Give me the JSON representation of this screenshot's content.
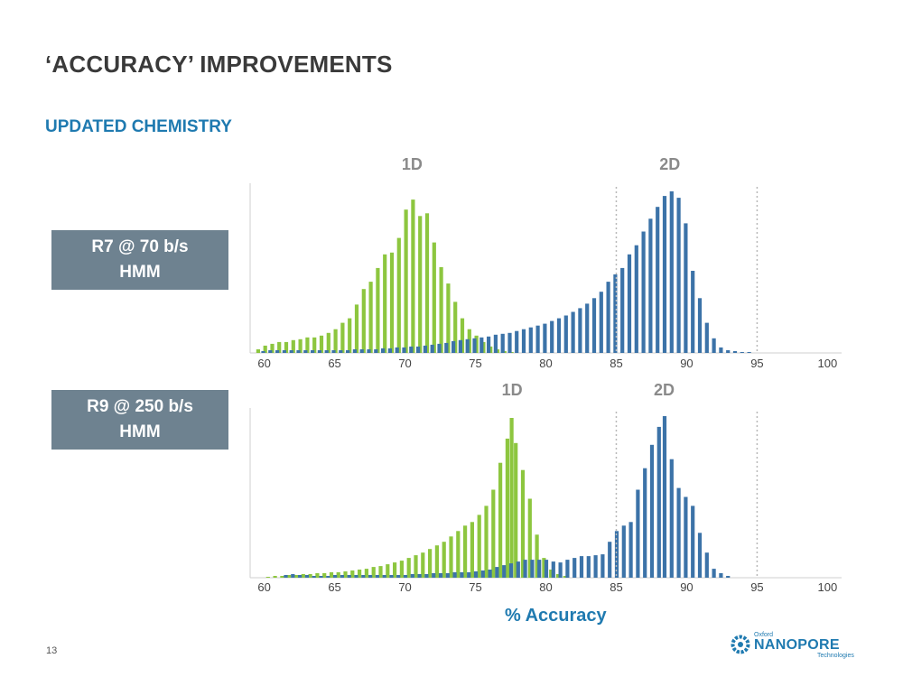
{
  "slide": {
    "title": "‘ACCURACY’ IMPROVEMENTS",
    "subtitle": "UPDATED CHEMISTRY",
    "page_number": "13",
    "x_axis_label": "% Accuracy"
  },
  "labels": {
    "r7": {
      "line1": "R7 @ 70 b/s",
      "line2": "HMM"
    },
    "r9": {
      "line1": "R9 @ 250 b/s",
      "line2": "HMM"
    }
  },
  "logo": {
    "small": "Oxford",
    "main": "NANOPORE",
    "tech": "Technologies"
  },
  "colors": {
    "green": "#8dc63f",
    "blue": "#3c73a8",
    "accent": "#1f7ab0",
    "label_bg": "#6e8290"
  },
  "chart_data": [
    {
      "type": "bar",
      "name": "R7 @ 70 b/s HMM",
      "xlim": [
        59,
        101
      ],
      "x_ticks": [
        "60",
        "65",
        "70",
        "75",
        "80",
        "85",
        "90",
        "95",
        "100"
      ],
      "reference_lines": [
        85,
        95
      ],
      "annotations": [
        {
          "text": "1D",
          "x": 70.5
        },
        {
          "text": "2D",
          "x": 88.8
        }
      ],
      "series": [
        {
          "name": "1D",
          "color": "#8dc63f",
          "points": [
            [
              59.6,
              4
            ],
            [
              60.1,
              8
            ],
            [
              60.6,
              10
            ],
            [
              61.1,
              12
            ],
            [
              61.6,
              12
            ],
            [
              62.1,
              14
            ],
            [
              62.6,
              15
            ],
            [
              63.1,
              17
            ],
            [
              63.6,
              17
            ],
            [
              64.1,
              19
            ],
            [
              64.6,
              22
            ],
            [
              65.1,
              26
            ],
            [
              65.6,
              33
            ],
            [
              66.1,
              38
            ],
            [
              66.6,
              53
            ],
            [
              67.1,
              70
            ],
            [
              67.6,
              78
            ],
            [
              68.1,
              93
            ],
            [
              68.6,
              108
            ],
            [
              69.1,
              110
            ],
            [
              69.6,
              126
            ],
            [
              70.1,
              157
            ],
            [
              70.6,
              168
            ],
            [
              71.1,
              150
            ],
            [
              71.6,
              153
            ],
            [
              72.1,
              121
            ],
            [
              72.6,
              94
            ],
            [
              73.1,
              76
            ],
            [
              73.6,
              56
            ],
            [
              74.1,
              38
            ],
            [
              74.6,
              26
            ],
            [
              75.1,
              19
            ],
            [
              75.6,
              12
            ],
            [
              76.1,
              7
            ],
            [
              76.6,
              4
            ],
            [
              77.1,
              2
            ],
            [
              77.6,
              1
            ]
          ]
        },
        {
          "name": "2D",
          "color": "#3c73a8",
          "points": [
            [
              59.9,
              2
            ],
            [
              60.4,
              3
            ],
            [
              60.9,
              3
            ],
            [
              61.4,
              3
            ],
            [
              61.9,
              3
            ],
            [
              62.4,
              3
            ],
            [
              62.9,
              3
            ],
            [
              63.4,
              3
            ],
            [
              63.9,
              3
            ],
            [
              64.4,
              3
            ],
            [
              64.9,
              3
            ],
            [
              65.4,
              3
            ],
            [
              65.9,
              3
            ],
            [
              66.4,
              4
            ],
            [
              66.9,
              4
            ],
            [
              67.4,
              4
            ],
            [
              67.9,
              4
            ],
            [
              68.4,
              5
            ],
            [
              68.9,
              5
            ],
            [
              69.4,
              6
            ],
            [
              69.9,
              6
            ],
            [
              70.4,
              7
            ],
            [
              70.9,
              7
            ],
            [
              71.4,
              8
            ],
            [
              71.9,
              9
            ],
            [
              72.4,
              10
            ],
            [
              72.9,
              11
            ],
            [
              73.4,
              13
            ],
            [
              73.9,
              14
            ],
            [
              74.4,
              15
            ],
            [
              74.9,
              16
            ],
            [
              75.4,
              17
            ],
            [
              75.9,
              18
            ],
            [
              76.4,
              20
            ],
            [
              76.9,
              21
            ],
            [
              77.4,
              22
            ],
            [
              77.9,
              24
            ],
            [
              78.4,
              26
            ],
            [
              78.9,
              28
            ],
            [
              79.4,
              30
            ],
            [
              79.9,
              32
            ],
            [
              80.4,
              35
            ],
            [
              80.9,
              38
            ],
            [
              81.4,
              41
            ],
            [
              81.9,
              45
            ],
            [
              82.4,
              49
            ],
            [
              82.9,
              54
            ],
            [
              83.4,
              60
            ],
            [
              83.9,
              67
            ],
            [
              84.4,
              78
            ],
            [
              84.9,
              86
            ],
            [
              85.4,
              93
            ],
            [
              85.9,
              108
            ],
            [
              86.4,
              118
            ],
            [
              86.9,
              133
            ],
            [
              87.4,
              147
            ],
            [
              87.9,
              160
            ],
            [
              88.4,
              172
            ],
            [
              88.9,
              177
            ],
            [
              89.4,
              170
            ],
            [
              89.9,
              142
            ],
            [
              90.4,
              90
            ],
            [
              90.9,
              60
            ],
            [
              91.4,
              33
            ],
            [
              91.9,
              16
            ],
            [
              92.4,
              6
            ],
            [
              92.9,
              3
            ],
            [
              93.4,
              2
            ],
            [
              93.9,
              1
            ],
            [
              94.4,
              1
            ]
          ]
        }
      ]
    },
    {
      "type": "bar",
      "name": "R9 @ 250 b/s HMM",
      "xlim": [
        59,
        101
      ],
      "x_ticks": [
        "60",
        "65",
        "70",
        "75",
        "80",
        "85",
        "90",
        "95",
        "100"
      ],
      "reference_lines": [
        85,
        95
      ],
      "annotations": [
        {
          "text": "1D",
          "x": 77.6
        },
        {
          "text": "2D",
          "x": 88.4
        }
      ],
      "series": [
        {
          "name": "1D",
          "color": "#8dc63f",
          "points": [
            [
              60.3,
              1
            ],
            [
              60.8,
              2
            ],
            [
              61.3,
              2
            ],
            [
              61.8,
              3
            ],
            [
              62.3,
              3
            ],
            [
              62.8,
              4
            ],
            [
              63.3,
              4
            ],
            [
              63.8,
              5
            ],
            [
              64.3,
              5
            ],
            [
              64.8,
              6
            ],
            [
              65.3,
              6
            ],
            [
              65.8,
              7
            ],
            [
              66.3,
              8
            ],
            [
              66.8,
              9
            ],
            [
              67.3,
              10
            ],
            [
              67.8,
              12
            ],
            [
              68.3,
              13
            ],
            [
              68.8,
              15
            ],
            [
              69.3,
              17
            ],
            [
              69.8,
              19
            ],
            [
              70.3,
              22
            ],
            [
              70.8,
              25
            ],
            [
              71.3,
              28
            ],
            [
              71.8,
              32
            ],
            [
              72.3,
              36
            ],
            [
              72.8,
              40
            ],
            [
              73.3,
              46
            ],
            [
              73.8,
              52
            ],
            [
              74.3,
              58
            ],
            [
              74.8,
              62
            ],
            [
              75.3,
              70
            ],
            [
              75.8,
              80
            ],
            [
              76.3,
              98
            ],
            [
              76.8,
              128
            ],
            [
              77.3,
              155
            ],
            [
              77.6,
              178
            ],
            [
              77.9,
              150
            ],
            [
              78.4,
              120
            ],
            [
              78.9,
              88
            ],
            [
              79.4,
              48
            ],
            [
              79.9,
              22
            ],
            [
              80.4,
              9
            ],
            [
              80.9,
              4
            ],
            [
              81.4,
              2
            ]
          ]
        },
        {
          "name": "2D",
          "color": "#3c73a8",
          "points": [
            [
              61.5,
              3
            ],
            [
              62.0,
              4
            ],
            [
              62.5,
              3
            ],
            [
              63.0,
              3
            ],
            [
              63.5,
              2
            ],
            [
              64.0,
              2
            ],
            [
              64.5,
              2
            ],
            [
              65.0,
              3
            ],
            [
              65.5,
              3
            ],
            [
              66.0,
              3
            ],
            [
              66.5,
              3
            ],
            [
              67.0,
              3
            ],
            [
              67.5,
              3
            ],
            [
              68.0,
              3
            ],
            [
              68.5,
              3
            ],
            [
              69.0,
              3
            ],
            [
              69.5,
              3
            ],
            [
              70.0,
              3
            ],
            [
              70.5,
              4
            ],
            [
              71.0,
              4
            ],
            [
              71.5,
              4
            ],
            [
              72.0,
              5
            ],
            [
              72.5,
              5
            ],
            [
              73.0,
              5
            ],
            [
              73.5,
              6
            ],
            [
              74.0,
              6
            ],
            [
              74.5,
              6
            ],
            [
              75.0,
              7
            ],
            [
              75.5,
              8
            ],
            [
              76.0,
              9
            ],
            [
              76.5,
              12
            ],
            [
              77.0,
              14
            ],
            [
              77.5,
              16
            ],
            [
              78.0,
              18
            ],
            [
              78.5,
              20
            ],
            [
              79.0,
              20
            ],
            [
              79.5,
              20
            ],
            [
              80.0,
              20
            ],
            [
              80.5,
              18
            ],
            [
              81.0,
              17
            ],
            [
              81.5,
              20
            ],
            [
              82.0,
              22
            ],
            [
              82.5,
              24
            ],
            [
              83.0,
              24
            ],
            [
              83.5,
              25
            ],
            [
              84.0,
              26
            ],
            [
              84.5,
              40
            ],
            [
              85.0,
              52
            ],
            [
              85.5,
              58
            ],
            [
              86.0,
              62
            ],
            [
              86.5,
              98
            ],
            [
              87.0,
              122
            ],
            [
              87.5,
              148
            ],
            [
              88.0,
              168
            ],
            [
              88.4,
              180
            ],
            [
              88.9,
              132
            ],
            [
              89.4,
              100
            ],
            [
              89.9,
              90
            ],
            [
              90.4,
              80
            ],
            [
              90.9,
              50
            ],
            [
              91.4,
              28
            ],
            [
              91.9,
              10
            ],
            [
              92.4,
              5
            ],
            [
              92.9,
              2
            ]
          ]
        }
      ]
    }
  ]
}
